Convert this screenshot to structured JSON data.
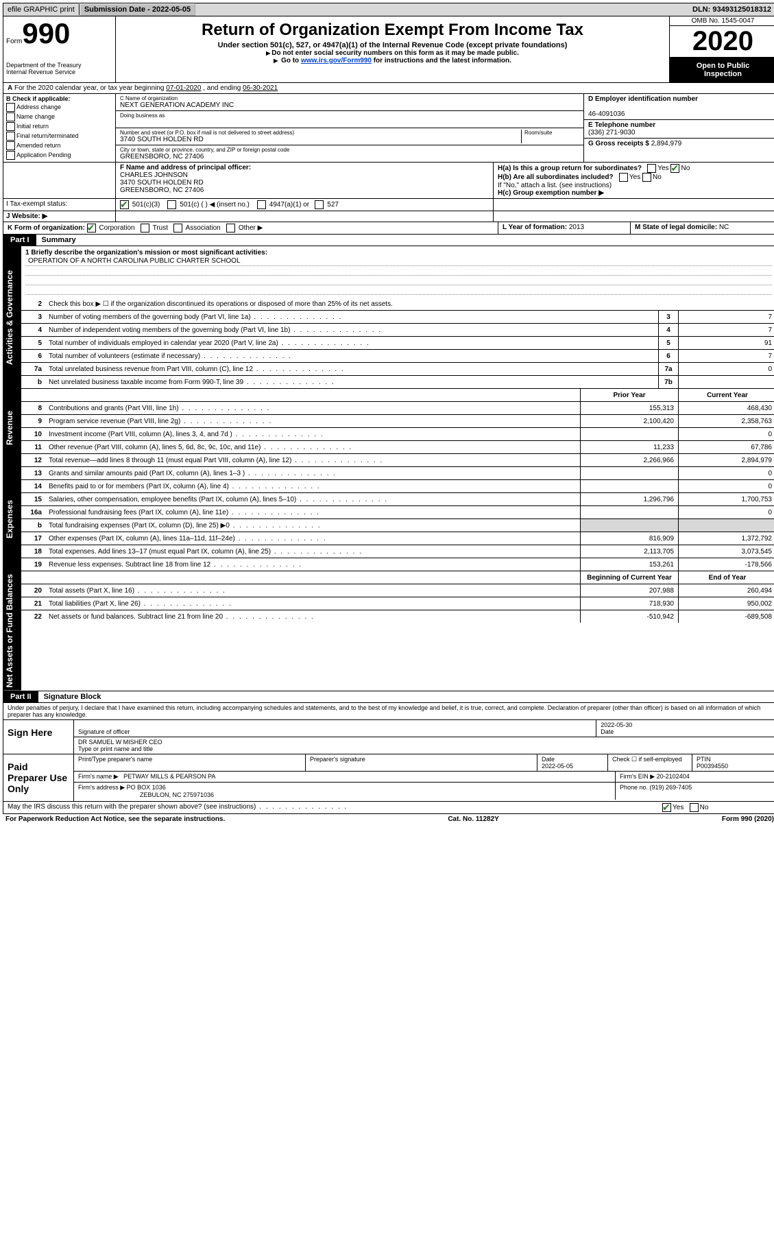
{
  "topbar": {
    "efile": "efile GRAPHIC print",
    "submission_label": "Submission Date - ",
    "submission_date": "2022-05-05",
    "dln_label": "DLN: ",
    "dln": "93493125018312"
  },
  "header": {
    "form_label": "Form",
    "form_number": "990",
    "title": "Return of Organization Exempt From Income Tax",
    "subtitle1": "Under section 501(c), 527, or 4947(a)(1) of the Internal Revenue Code (except private foundations)",
    "subtitle2": "Do not enter social security numbers on this form as it may be made public.",
    "subtitle3_pre": "Go to ",
    "subtitle3_link": "www.irs.gov/Form990",
    "subtitle3_post": " for instructions and the latest information.",
    "dept1": "Department of the Treasury",
    "dept2": "Internal Revenue Service",
    "omb": "OMB No. 1545-0047",
    "year": "2020",
    "open1": "Open to Public",
    "open2": "Inspection"
  },
  "row_a": {
    "text_pre": "For the 2020 calendar year, or tax year beginning ",
    "begin": "07-01-2020",
    "mid": " , and ending ",
    "end": "06-30-2021"
  },
  "entity": {
    "b_label": "B Check if applicable:",
    "b_opts": [
      "Address change",
      "Name change",
      "Initial return",
      "Final return/terminated",
      "Amended return",
      "Application Pending"
    ],
    "c_label": "C Name of organization",
    "c_name": "NEXT GENERATION ACADEMY INC",
    "dba_label": "Doing business as",
    "street_label": "Number and street (or P.O. box if mail is not delivered to street address)",
    "room_label": "Room/suite",
    "street": "3740 SOUTH HOLDEN RD",
    "city_label": "City or town, state or province, country, and ZIP or foreign postal code",
    "city": "GREENSBORO, NC  27406",
    "d_label": "D Employer identification number",
    "d_ein": "46-4091036",
    "e_label": "E Telephone number",
    "e_phone": "(336) 271-9030",
    "g_label": "G Gross receipts $ ",
    "g_amount": "2,894,979",
    "f_label": "F  Name and address of principal officer:",
    "f_name": "CHARLES JOHNSON",
    "f_street": "3470 SOUTH HOLDEN RD",
    "f_city": "GREENSBORO, NC  27406",
    "ha_label": "H(a)  Is this a group return for subordinates?",
    "hb_label": "H(b)  Are all subordinates included?",
    "h_note": "If \"No,\" attach a list. (see instructions)",
    "hc_label": "H(c)  Group exemption number ▶",
    "yes": "Yes",
    "no": "No"
  },
  "i_row": {
    "label": "I  Tax-exempt status:",
    "opt1": "501(c)(3)",
    "opt2": "501(c) (  ) ◀ (insert no.)",
    "opt3": "4947(a)(1) or",
    "opt4": "527"
  },
  "j_row": {
    "label": "J  Website: ▶"
  },
  "k_row": {
    "label": "K Form of organization:",
    "opts": [
      "Corporation",
      "Trust",
      "Association",
      "Other ▶"
    ],
    "l_label": "L Year of formation: ",
    "l_val": "2013",
    "m_label": "M State of legal domicile: ",
    "m_val": "NC"
  },
  "part1": {
    "title": "Part I",
    "subtitle": "Summary",
    "tab_gov": "Activities & Governance",
    "tab_rev": "Revenue",
    "tab_exp": "Expenses",
    "tab_net": "Net Assets or Fund Balances",
    "line1_label": "1  Briefly describe the organization's mission or most significant activities:",
    "line1_val": "OPERATION OF A NORTH CAROLINA PUBLIC CHARTER SCHOOL",
    "line2": "Check this box ▶ ☐  if the organization discontinued its operations or disposed of more than 25% of its net assets.",
    "lines_gov": [
      {
        "n": "3",
        "d": "Number of voting members of the governing body (Part VI, line 1a)",
        "b": "3",
        "v": "7"
      },
      {
        "n": "4",
        "d": "Number of independent voting members of the governing body (Part VI, line 1b)",
        "b": "4",
        "v": "7"
      },
      {
        "n": "5",
        "d": "Total number of individuals employed in calendar year 2020 (Part V, line 2a)",
        "b": "5",
        "v": "91"
      },
      {
        "n": "6",
        "d": "Total number of volunteers (estimate if necessary)",
        "b": "6",
        "v": "7"
      },
      {
        "n": "7a",
        "d": "Total unrelated business revenue from Part VIII, column (C), line 12",
        "b": "7a",
        "v": "0"
      },
      {
        "n": "b",
        "d": "Net unrelated business taxable income from Form 990-T, line 39",
        "b": "7b",
        "v": ""
      }
    ],
    "head_prior": "Prior Year",
    "head_current": "Current Year",
    "lines_rev": [
      {
        "n": "8",
        "d": "Contributions and grants (Part VIII, line 1h)",
        "p": "155,313",
        "c": "468,430"
      },
      {
        "n": "9",
        "d": "Program service revenue (Part VIII, line 2g)",
        "p": "2,100,420",
        "c": "2,358,763"
      },
      {
        "n": "10",
        "d": "Investment income (Part VIII, column (A), lines 3, 4, and 7d )",
        "p": "",
        "c": "0"
      },
      {
        "n": "11",
        "d": "Other revenue (Part VIII, column (A), lines 5, 6d, 8c, 9c, 10c, and 11e)",
        "p": "11,233",
        "c": "67,786"
      },
      {
        "n": "12",
        "d": "Total revenue—add lines 8 through 11 (must equal Part VIII, column (A), line 12)",
        "p": "2,266,966",
        "c": "2,894,979"
      }
    ],
    "lines_exp": [
      {
        "n": "13",
        "d": "Grants and similar amounts paid (Part IX, column (A), lines 1–3 )",
        "p": "",
        "c": "0"
      },
      {
        "n": "14",
        "d": "Benefits paid to or for members (Part IX, column (A), line 4)",
        "p": "",
        "c": "0"
      },
      {
        "n": "15",
        "d": "Salaries, other compensation, employee benefits (Part IX, column (A), lines 5–10)",
        "p": "1,296,796",
        "c": "1,700,753"
      },
      {
        "n": "16a",
        "d": "Professional fundraising fees (Part IX, column (A), line 11e)",
        "p": "",
        "c": "0"
      },
      {
        "n": "b",
        "d": "Total fundraising expenses (Part IX, column (D), line 25) ▶0",
        "p": "shade",
        "c": "shade"
      },
      {
        "n": "17",
        "d": "Other expenses (Part IX, column (A), lines 11a–11d, 11f–24e)",
        "p": "816,909",
        "c": "1,372,792"
      },
      {
        "n": "18",
        "d": "Total expenses. Add lines 13–17 (must equal Part IX, column (A), line 25)",
        "p": "2,113,705",
        "c": "3,073,545"
      },
      {
        "n": "19",
        "d": "Revenue less expenses. Subtract line 18 from line 12",
        "p": "153,261",
        "c": "-178,566"
      }
    ],
    "head_boy": "Beginning of Current Year",
    "head_eoy": "End of Year",
    "lines_net": [
      {
        "n": "20",
        "d": "Total assets (Part X, line 16)",
        "p": "207,988",
        "c": "260,494"
      },
      {
        "n": "21",
        "d": "Total liabilities (Part X, line 26)",
        "p": "718,930",
        "c": "950,002"
      },
      {
        "n": "22",
        "d": "Net assets or fund balances. Subtract line 21 from line 20",
        "p": "-510,942",
        "c": "-689,508"
      }
    ]
  },
  "part2": {
    "title": "Part II",
    "subtitle": "Signature Block",
    "jurat": "Under penalties of perjury, I declare that I have examined this return, including accompanying schedules and statements, and to the best of my knowledge and belief, it is true, correct, and complete. Declaration of preparer (other than officer) is based on all information of which preparer has any knowledge.",
    "sign_here": "Sign Here",
    "sig_of_officer": "Signature of officer",
    "date_label": "Date",
    "sig_date": "2022-05-30",
    "officer_name": "DR SAMUEL W MISHER  CEO",
    "type_name": "Type or print name and title",
    "paid_use": "Paid Preparer Use Only",
    "print_name": "Print/Type preparer's name",
    "prep_sig": "Preparer's signature",
    "prep_date_label": "Date",
    "prep_date": "2022-05-05",
    "check_self": "Check ☐ if self-employed",
    "ptin_label": "PTIN",
    "ptin": "P00394550",
    "firm_name_label": "Firm's name    ▶",
    "firm_name": "PETWAY MILLS & PEARSON PA",
    "firm_ein_label": "Firm's EIN ▶",
    "firm_ein": "20-2102404",
    "firm_addr_label": "Firm's address ▶",
    "firm_addr1": "PO BOX 1036",
    "firm_addr2": "ZEBULON, NC  275971036",
    "phone_label": "Phone no. ",
    "phone": "(919) 269-7405",
    "discuss": "May the IRS discuss this return with the preparer shown above? (see instructions)"
  },
  "footer": {
    "left": "For Paperwork Reduction Act Notice, see the separate instructions.",
    "mid": "Cat. No. 11282Y",
    "right": "Form 990 (2020)"
  }
}
